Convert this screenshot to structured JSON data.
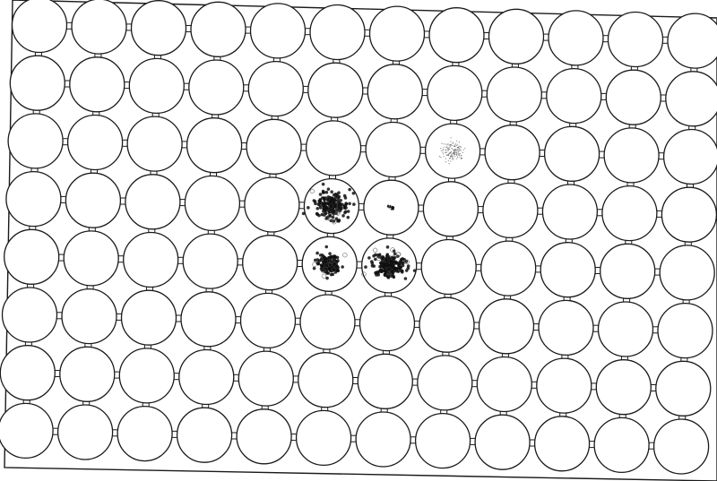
{
  "plate": {
    "rows": 8,
    "columns": 12,
    "well_count": 96,
    "colors": {
      "background": "#ffffff",
      "outline": "#1a1a1a",
      "colony": "#111111"
    }
  },
  "colonies": [
    {
      "row": 3,
      "col": 8,
      "density": "sparse",
      "size": "medium"
    },
    {
      "row": 4,
      "col": 6,
      "density": "dense",
      "size": "large"
    },
    {
      "row": 4,
      "col": 7,
      "density": "dense",
      "size": "tiny"
    },
    {
      "row": 5,
      "col": 6,
      "density": "dense",
      "size": "medium"
    },
    {
      "row": 5,
      "col": 7,
      "density": "dense",
      "size": "large"
    }
  ]
}
